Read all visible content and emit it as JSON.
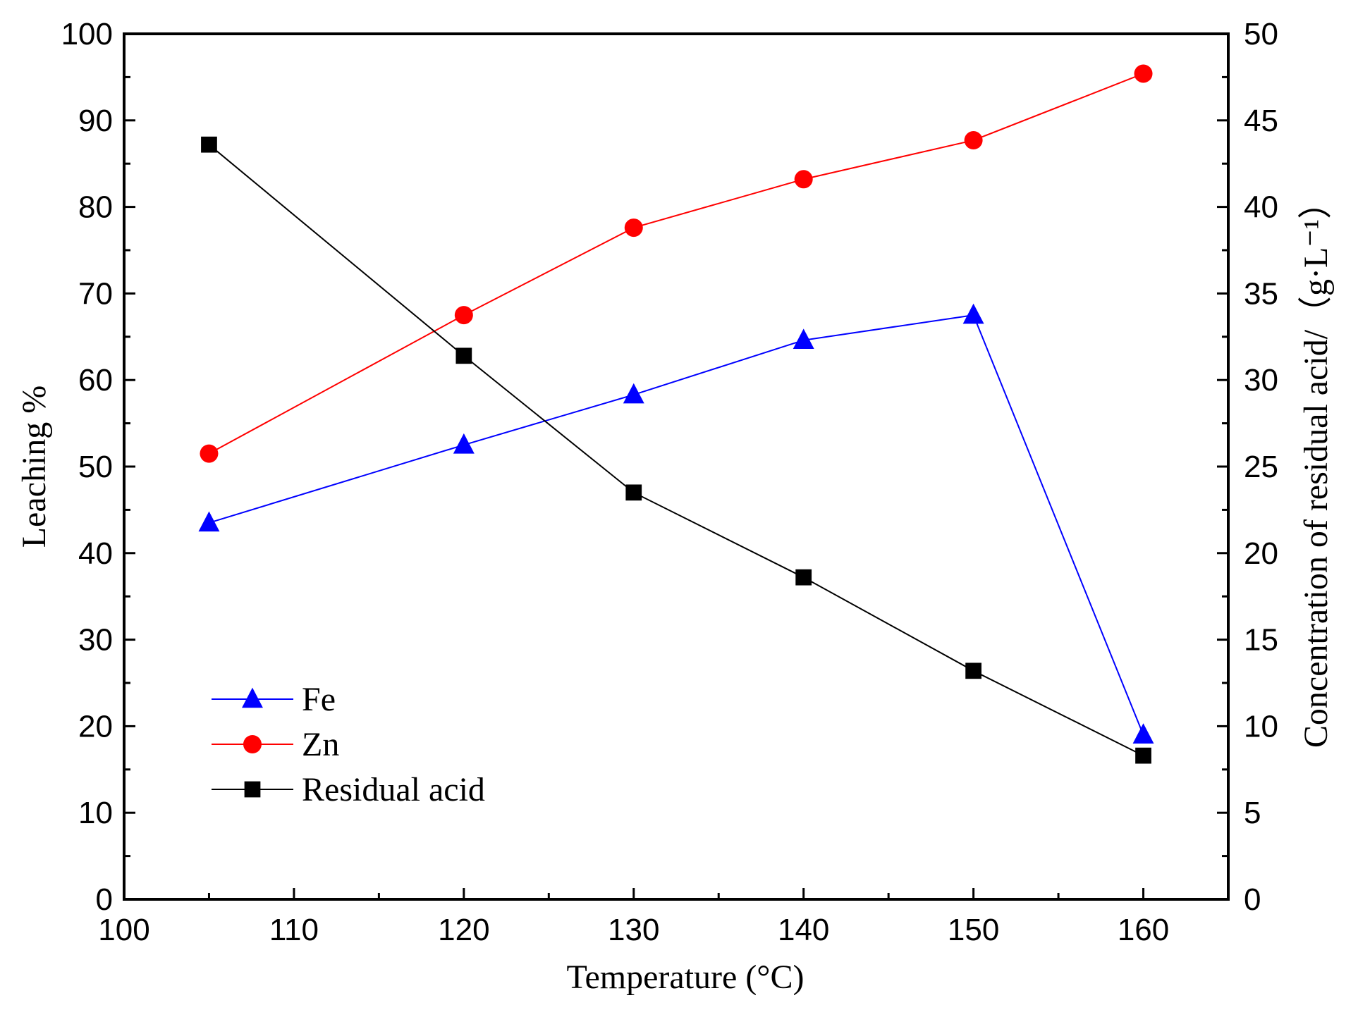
{
  "chart_data": {
    "type": "line",
    "title": "",
    "xlabel": "Temperature (°C)",
    "ylabel_left": "Leaching %",
    "ylabel_right": "Concentration of residual acid/（g·L⁻¹）",
    "xlim": [
      100,
      165
    ],
    "ylim_left": [
      0,
      100
    ],
    "ylim_right": [
      0,
      50
    ],
    "x_ticks": [
      100,
      110,
      120,
      130,
      140,
      150,
      160
    ],
    "y_left_ticks": [
      0,
      10,
      20,
      30,
      40,
      50,
      60,
      70,
      80,
      90,
      100
    ],
    "y_right_ticks": [
      0,
      5,
      10,
      15,
      20,
      25,
      30,
      35,
      40,
      45,
      50
    ],
    "grid": false,
    "legend_position": "bottom-left",
    "x": [
      105,
      120,
      130,
      140,
      150,
      160
    ],
    "series": [
      {
        "name": "Fe",
        "axis": "left",
        "color": "#0000ff",
        "marker": "triangle",
        "values": [
          43.5,
          52.5,
          58.3,
          64.6,
          67.5,
          19.0
        ]
      },
      {
        "name": "Zn",
        "axis": "left",
        "color": "#ff0000",
        "marker": "circle",
        "values": [
          51.5,
          67.5,
          77.6,
          83.2,
          87.7,
          95.4
        ]
      },
      {
        "name": "Residual acid",
        "axis": "right",
        "color": "#000000",
        "marker": "square",
        "values": [
          43.6,
          31.4,
          23.5,
          18.6,
          13.2,
          8.3
        ]
      }
    ]
  }
}
